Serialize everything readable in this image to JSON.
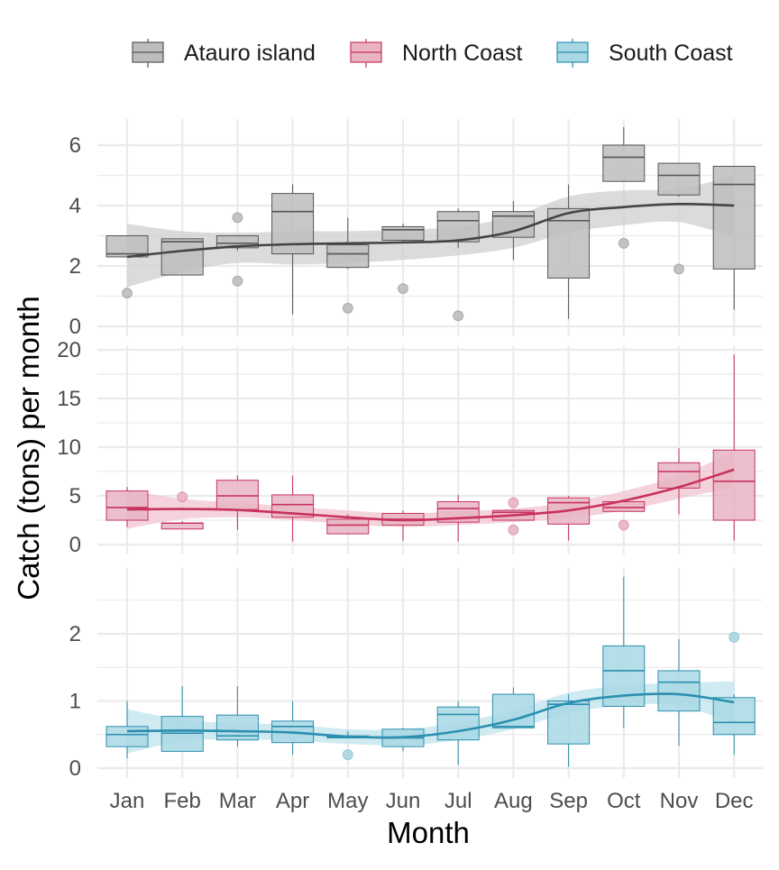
{
  "chart_data": {
    "type": "box",
    "xlabel": "Month",
    "ylabel": "Catch (tons) per month",
    "categories": [
      "Jan",
      "Feb",
      "Mar",
      "Apr",
      "May",
      "Jun",
      "Jul",
      "Aug",
      "Sep",
      "Oct",
      "Nov",
      "Dec"
    ],
    "legend": {
      "position": "top",
      "entries": [
        {
          "name": "Atauro island",
          "fill": "#bdbdbd",
          "stroke": "#555555"
        },
        {
          "name": "North Coast",
          "fill": "#e8b4c4",
          "stroke": "#c8325e"
        },
        {
          "name": "South Coast",
          "fill": "#a9d8e4",
          "stroke": "#2a8fb0"
        }
      ]
    },
    "grid": true,
    "panels": [
      {
        "series": "Atauro island",
        "color_line": "#444444",
        "color_box_fill": "#bdbdbd",
        "color_box_stroke": "#555555",
        "color_band": "#cfcfcf",
        "ylim": [
          0,
          6.8
        ],
        "yticks": [
          0,
          2,
          4,
          6
        ],
        "boxes": [
          {
            "month": "Jan",
            "lower": 2.3,
            "q1": 2.3,
            "median": 2.4,
            "q3": 3.0,
            "upper": 3.0
          },
          {
            "month": "Feb",
            "lower": 1.7,
            "q1": 1.7,
            "median": 2.8,
            "q3": 2.9,
            "upper": 2.9
          },
          {
            "month": "Mar",
            "lower": 2.5,
            "q1": 2.6,
            "median": 2.75,
            "q3": 3.0,
            "upper": 3.0
          },
          {
            "month": "Apr",
            "lower": 0.4,
            "q1": 2.4,
            "median": 3.8,
            "q3": 4.4,
            "upper": 4.7
          },
          {
            "month": "May",
            "lower": 1.9,
            "q1": 1.95,
            "median": 2.4,
            "q3": 2.7,
            "upper": 3.6
          },
          {
            "month": "Jun",
            "lower": 2.8,
            "q1": 2.85,
            "median": 3.2,
            "q3": 3.3,
            "upper": 3.4
          },
          {
            "month": "Jul",
            "lower": 2.6,
            "q1": 2.8,
            "median": 3.5,
            "q3": 3.8,
            "upper": 3.9
          },
          {
            "month": "Aug",
            "lower": 2.2,
            "q1": 2.95,
            "median": 3.65,
            "q3": 3.8,
            "upper": 4.15
          },
          {
            "month": "Sep",
            "lower": 0.25,
            "q1": 1.6,
            "median": 3.5,
            "q3": 3.9,
            "upper": 4.7
          },
          {
            "month": "Oct",
            "lower": 4.8,
            "q1": 4.8,
            "median": 5.6,
            "q3": 6.0,
            "upper": 6.6
          },
          {
            "month": "Nov",
            "lower": 4.3,
            "q1": 4.35,
            "median": 5.0,
            "q3": 5.4,
            "upper": 5.4
          },
          {
            "month": "Dec",
            "lower": 0.55,
            "q1": 1.9,
            "median": 4.7,
            "q3": 5.3,
            "upper": 5.3
          }
        ],
        "outliers": [
          {
            "month": "Jan",
            "value": 1.1
          },
          {
            "month": "Mar",
            "value": 3.6
          },
          {
            "month": "Mar",
            "value": 1.5
          },
          {
            "month": "May",
            "value": 0.6
          },
          {
            "month": "Jun",
            "value": 1.25
          },
          {
            "month": "Jul",
            "value": 0.35
          },
          {
            "month": "Oct",
            "value": 2.75
          },
          {
            "month": "Nov",
            "value": 1.9
          }
        ],
        "smooth": {
          "fit": [
            2.3,
            2.5,
            2.65,
            2.72,
            2.75,
            2.78,
            2.85,
            3.15,
            3.75,
            3.95,
            4.05,
            4.0
          ],
          "lower": [
            1.3,
            1.8,
            2.1,
            2.05,
            2.1,
            2.2,
            2.35,
            2.6,
            3.1,
            3.35,
            3.45,
            2.95
          ],
          "upper": [
            3.4,
            3.15,
            3.1,
            3.15,
            3.15,
            3.2,
            3.3,
            3.65,
            4.3,
            4.5,
            4.55,
            5.0
          ]
        }
      },
      {
        "series": "North Coast",
        "color_line": "#c8325e",
        "color_box_fill": "#e8b4c4",
        "color_box_stroke": "#c8325e",
        "color_band": "#f0c4d1",
        "ylim": [
          0,
          20.5
        ],
        "yticks": [
          0,
          5,
          10,
          15,
          20
        ],
        "boxes": [
          {
            "month": "Jan",
            "lower": 1.8,
            "q1": 2.5,
            "median": 3.8,
            "q3": 5.5,
            "upper": 5.9
          },
          {
            "month": "Feb",
            "lower": 1.6,
            "q1": 1.6,
            "median": 2.2,
            "q3": 2.2,
            "upper": 2.4
          },
          {
            "month": "Mar",
            "lower": 1.5,
            "q1": 3.6,
            "median": 5.0,
            "q3": 6.6,
            "upper": 7.1
          },
          {
            "month": "Apr",
            "lower": 0.3,
            "q1": 2.8,
            "median": 4.1,
            "q3": 5.1,
            "upper": 7.1
          },
          {
            "month": "May",
            "lower": 1.1,
            "q1": 1.1,
            "median": 2.0,
            "q3": 2.6,
            "upper": 3.1
          },
          {
            "month": "Jun",
            "lower": 0.4,
            "q1": 2.0,
            "median": 2.6,
            "q3": 3.2,
            "upper": 3.5
          },
          {
            "month": "Jul",
            "lower": 0.3,
            "q1": 2.3,
            "median": 3.7,
            "q3": 4.4,
            "upper": 5.1
          },
          {
            "month": "Aug",
            "lower": 2.5,
            "q1": 2.5,
            "median": 3.3,
            "q3": 3.5,
            "upper": 3.6
          },
          {
            "month": "Sep",
            "lower": 0.4,
            "q1": 2.1,
            "median": 4.3,
            "q3": 4.8,
            "upper": 5.0
          },
          {
            "month": "Oct",
            "lower": 3.4,
            "q1": 3.4,
            "median": 3.8,
            "q3": 4.4,
            "upper": 4.4
          },
          {
            "month": "Nov",
            "lower": 3.1,
            "q1": 5.8,
            "median": 7.5,
            "q3": 8.4,
            "upper": 9.9
          },
          {
            "month": "Dec",
            "lower": 0.4,
            "q1": 2.5,
            "median": 6.5,
            "q3": 9.7,
            "upper": 19.5
          }
        ],
        "outliers": [
          {
            "month": "Feb",
            "value": 4.9
          },
          {
            "month": "Aug",
            "value": 4.3
          },
          {
            "month": "Aug",
            "value": 1.5
          },
          {
            "month": "Oct",
            "value": 2.0
          }
        ],
        "smooth": {
          "fit": [
            3.6,
            3.65,
            3.55,
            3.2,
            2.8,
            2.5,
            2.7,
            3.0,
            3.5,
            4.5,
            5.9,
            7.7
          ],
          "lower": [
            1.6,
            2.6,
            2.8,
            2.5,
            2.1,
            1.8,
            2.0,
            2.3,
            2.7,
            3.5,
            4.7,
            5.9
          ],
          "upper": [
            5.6,
            4.7,
            4.3,
            3.9,
            3.5,
            3.2,
            3.4,
            3.7,
            4.3,
            5.5,
            7.1,
            9.5
          ]
        }
      },
      {
        "series": "South Coast",
        "color_line": "#2a8fb0",
        "color_box_fill": "#a9d8e4",
        "color_box_stroke": "#2a8fb0",
        "color_band": "#bfe3ec",
        "ylim": [
          0,
          2.85
        ],
        "yticks": [
          0,
          1,
          2
        ],
        "boxes": [
          {
            "month": "Jan",
            "lower": 0.15,
            "q1": 0.32,
            "median": 0.5,
            "q3": 0.62,
            "upper": 1.0
          },
          {
            "month": "Feb",
            "lower": 0.25,
            "q1": 0.25,
            "median": 0.52,
            "q3": 0.77,
            "upper": 1.22
          },
          {
            "month": "Mar",
            "lower": 0.32,
            "q1": 0.42,
            "median": 0.48,
            "q3": 0.79,
            "upper": 1.22
          },
          {
            "month": "Apr",
            "lower": 0.2,
            "q1": 0.38,
            "median": 0.62,
            "q3": 0.7,
            "upper": 1.0
          },
          {
            "month": "May",
            "lower": 0.44,
            "q1": 0.45,
            "median": 0.46,
            "q3": 0.48,
            "upper": 0.55
          },
          {
            "month": "Jun",
            "lower": 0.25,
            "q1": 0.32,
            "median": 0.45,
            "q3": 0.58,
            "upper": 0.6
          },
          {
            "month": "Jul",
            "lower": 0.05,
            "q1": 0.42,
            "median": 0.8,
            "q3": 0.91,
            "upper": 1.0
          },
          {
            "month": "Aug",
            "lower": 0.6,
            "q1": 0.6,
            "median": 0.62,
            "q3": 1.1,
            "upper": 1.2
          },
          {
            "month": "Sep",
            "lower": 0.02,
            "q1": 0.36,
            "median": 0.95,
            "q3": 1.0,
            "upper": 1.1
          },
          {
            "month": "Oct",
            "lower": 0.6,
            "q1": 0.92,
            "median": 1.45,
            "q3": 1.82,
            "upper": 2.85
          },
          {
            "month": "Nov",
            "lower": 0.33,
            "q1": 0.85,
            "median": 1.28,
            "q3": 1.45,
            "upper": 1.92
          },
          {
            "month": "Dec",
            "lower": 0.2,
            "q1": 0.5,
            "median": 0.68,
            "q3": 1.05,
            "upper": 1.1
          }
        ],
        "outliers": [
          {
            "month": "May",
            "value": 0.2
          },
          {
            "month": "Dec",
            "value": 1.95
          }
        ],
        "smooth": {
          "fit": [
            0.55,
            0.56,
            0.55,
            0.53,
            0.47,
            0.46,
            0.55,
            0.72,
            0.97,
            1.08,
            1.1,
            0.98
          ],
          "lower": [
            0.22,
            0.4,
            0.43,
            0.41,
            0.36,
            0.34,
            0.42,
            0.58,
            0.82,
            0.93,
            0.93,
            0.67
          ],
          "upper": [
            0.88,
            0.72,
            0.67,
            0.65,
            0.58,
            0.58,
            0.68,
            0.86,
            1.12,
            1.23,
            1.27,
            1.29
          ]
        }
      }
    ]
  }
}
